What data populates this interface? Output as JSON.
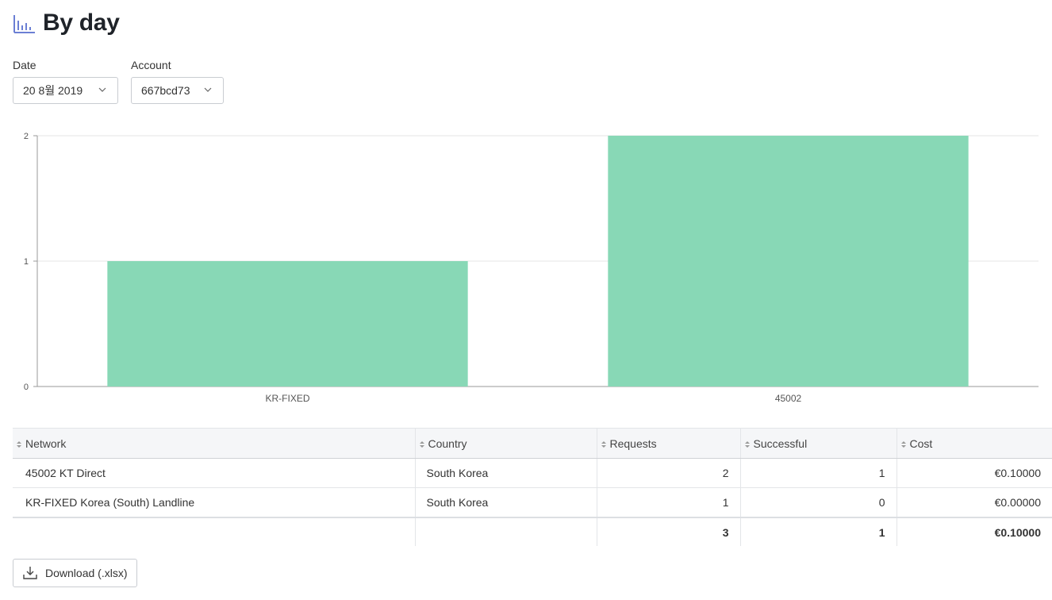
{
  "header": {
    "title": "By day",
    "icon": "bar-chart-icon"
  },
  "filters": {
    "date": {
      "label": "Date",
      "value": "20 8월 2019"
    },
    "account": {
      "label": "Account",
      "value": "667bcd73"
    }
  },
  "chart_data": {
    "type": "bar",
    "categories": [
      "KR-FIXED",
      "45002"
    ],
    "values": [
      1,
      2
    ],
    "ylim": [
      0,
      2
    ],
    "yticks": [
      "0",
      "1",
      "2"
    ],
    "grid": true,
    "bar_color": "#88d8b6"
  },
  "table": {
    "columns": [
      "Network",
      "Country",
      "Requests",
      "Successful",
      "Cost"
    ],
    "rows": [
      [
        "45002 KT Direct",
        "South Korea",
        "2",
        "1",
        "€0.10000"
      ],
      [
        "KR-FIXED Korea (South) Landline",
        "South Korea",
        "1",
        "0",
        "€0.00000"
      ]
    ],
    "totals": [
      "",
      "",
      "3",
      "1",
      "€0.10000"
    ]
  },
  "download": {
    "label": "Download (.xlsx)"
  }
}
